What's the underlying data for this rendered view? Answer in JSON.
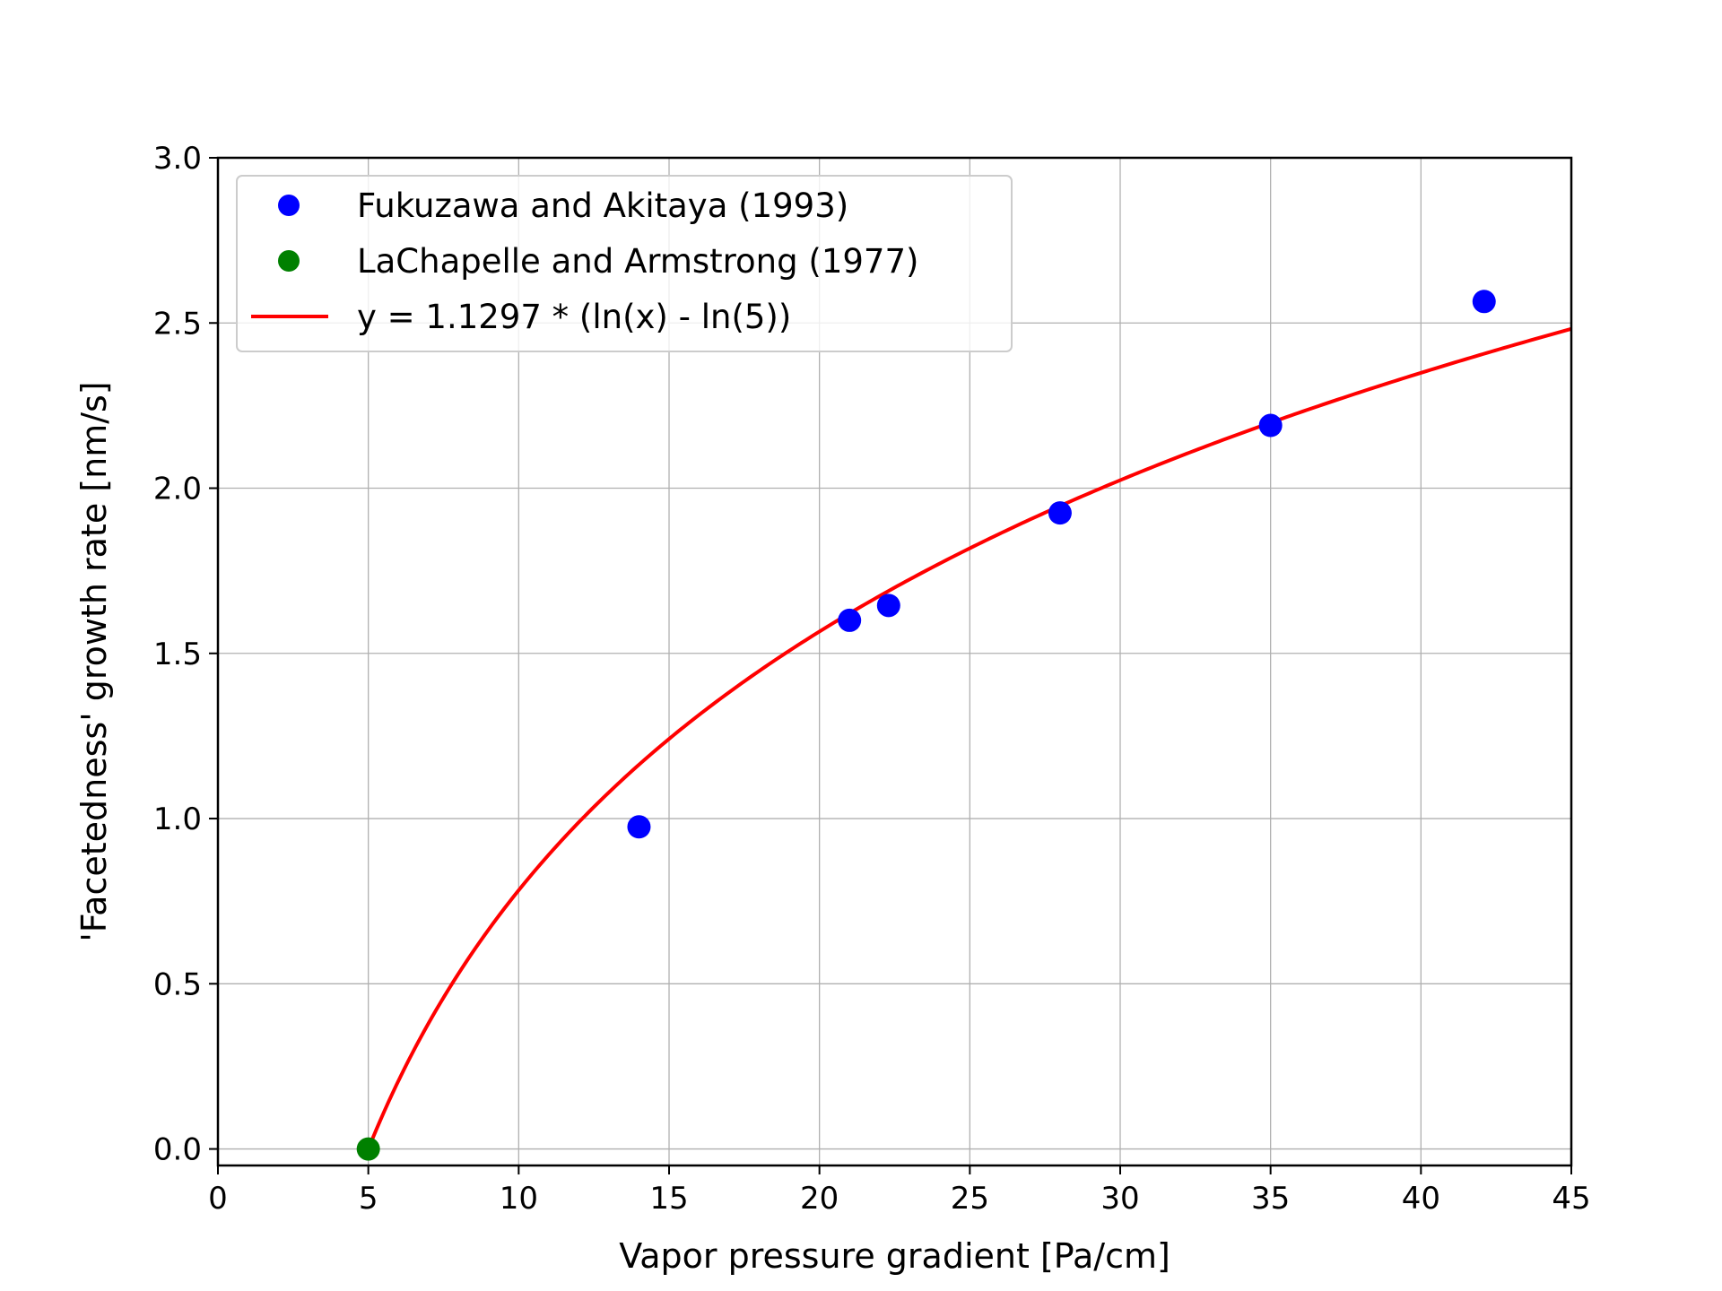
{
  "chart_data": {
    "type": "scatter",
    "xlabel": "Vapor pressure gradient [Pa/cm]",
    "ylabel": "'Facetedness' growth rate [nm/s]",
    "xlim": [
      0,
      45
    ],
    "ylim": [
      -0.05,
      3.0
    ],
    "xticks": [
      0,
      5,
      10,
      15,
      20,
      25,
      30,
      35,
      40,
      45
    ],
    "xtick_labels": [
      "0",
      "5",
      "10",
      "15",
      "20",
      "25",
      "30",
      "35",
      "40",
      "45"
    ],
    "yticks": [
      0.0,
      0.5,
      1.0,
      1.5,
      2.0,
      2.5,
      3.0
    ],
    "ytick_labels": [
      "0.0",
      "0.5",
      "1.0",
      "1.5",
      "2.0",
      "2.5",
      "3.0"
    ],
    "grid": true,
    "legend_position": "top-left",
    "series": [
      {
        "name": "Fukuzawa and Akitaya (1993)",
        "kind": "scatter",
        "color": "#0000ff",
        "x": [
          14.0,
          21.0,
          22.3,
          28.0,
          35.0,
          42.1
        ],
        "y": [
          0.975,
          1.6,
          1.645,
          1.925,
          2.19,
          2.565
        ]
      },
      {
        "name": "LaChapelle and Armstrong (1977)",
        "kind": "scatter",
        "color": "#008000",
        "x": [
          5.0
        ],
        "y": [
          0.0
        ]
      },
      {
        "name": "y = 1.1297 * (ln(x) - ln(5))",
        "kind": "line",
        "color": "#ff0000",
        "function": {
          "coefficient": 1.1297,
          "x0": 5,
          "x_from": 5,
          "x_to": 45
        }
      }
    ]
  }
}
